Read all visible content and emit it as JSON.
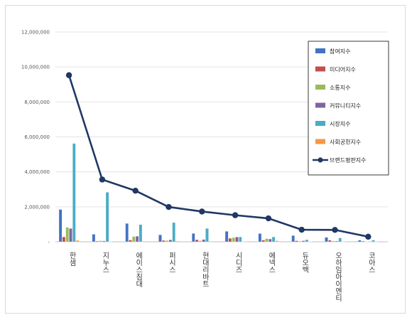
{
  "chart_data": {
    "type": "bar",
    "categories": [
      "한샘",
      "지누스",
      "에이스침대",
      "퍼시스",
      "현대리바트",
      "시디즈",
      "에넥스",
      "듀오백",
      "오하임아이엔티",
      "코아스"
    ],
    "ylim": [
      0,
      12000000
    ],
    "yticks": [
      0,
      2000000,
      4000000,
      6000000,
      8000000,
      10000000,
      12000000
    ],
    "ytick_labels": [
      "-",
      "2,000,000",
      "4,000,000",
      "6,000,000",
      "8,000,000",
      "10,000,000",
      "12,000,000"
    ],
    "grid": true,
    "legend_position": "right",
    "series": [
      {
        "name": "참여지수",
        "type": "bar",
        "color": "#4472c4",
        "values": [
          1850000,
          430000,
          1050000,
          400000,
          480000,
          600000,
          470000,
          360000,
          250000,
          90000
        ]
      },
      {
        "name": "미디어지수",
        "type": "bar",
        "color": "#c0504d",
        "values": [
          280000,
          40000,
          100000,
          80000,
          120000,
          200000,
          100000,
          60000,
          90000,
          40000
        ]
      },
      {
        "name": "소통지수",
        "type": "bar",
        "color": "#9bbb59",
        "values": [
          820000,
          60000,
          300000,
          70000,
          60000,
          240000,
          180000,
          40000,
          50000,
          20000
        ]
      },
      {
        "name": "커뮤니티지수",
        "type": "bar",
        "color": "#8064a2",
        "values": [
          760000,
          50000,
          320000,
          110000,
          130000,
          270000,
          160000,
          60000,
          40000,
          20000
        ]
      },
      {
        "name": "시장지수",
        "type": "bar",
        "color": "#4bacc6",
        "values": [
          5620000,
          2830000,
          980000,
          1100000,
          760000,
          280000,
          280000,
          120000,
          220000,
          90000
        ]
      },
      {
        "name": "사회공헌지수",
        "type": "bar",
        "color": "#f79646",
        "values": [
          80000,
          20000,
          30000,
          40000,
          30000,
          20000,
          60000,
          20000,
          20000,
          20000
        ]
      },
      {
        "name": "브랜드평판지수",
        "type": "line",
        "color": "#1f3864",
        "values": [
          9530000,
          3560000,
          2920000,
          1990000,
          1730000,
          1520000,
          1340000,
          690000,
          680000,
          290000
        ]
      }
    ]
  }
}
